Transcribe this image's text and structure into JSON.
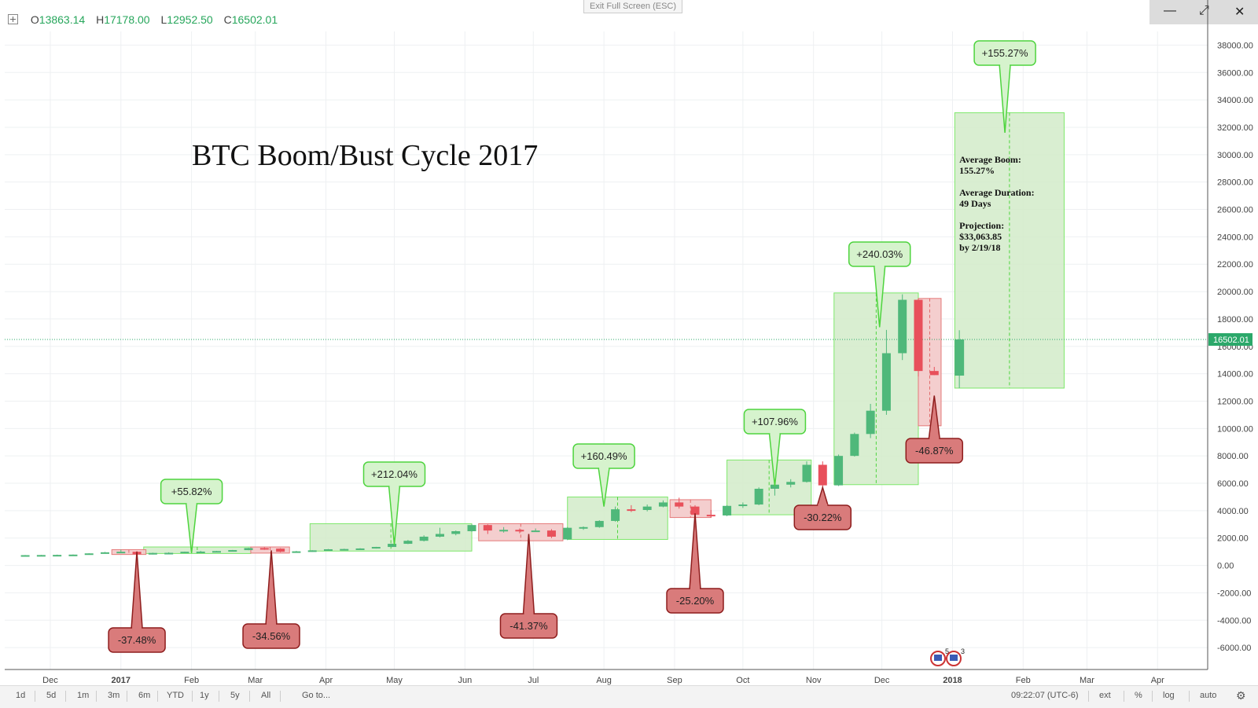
{
  "toolbar": {
    "ohlc": [
      {
        "key": "O",
        "value": "13863.14"
      },
      {
        "key": "H",
        "value": "17178.00"
      },
      {
        "key": "L",
        "value": "12952.50"
      },
      {
        "key": "C",
        "value": "16502.01"
      }
    ],
    "exit_fullscreen": "Exit Full Screen (ESC)",
    "window_buttons": [
      "—",
      "⤢",
      "✕"
    ]
  },
  "bottom_bar": {
    "ranges": [
      "1d",
      "5d",
      "1m",
      "3m",
      "6m",
      "YTD",
      "1y",
      "5y",
      "All"
    ],
    "goto": "Go to...",
    "clock": "09:22:07 (UTC-6)",
    "options": [
      "ext",
      "%",
      "log",
      "auto"
    ],
    "gear_icon": "gear-icon"
  },
  "chart_data": {
    "type": "candlestick",
    "title": "BTC Boom/Bust Cycle 2017",
    "last_price_label": "16502.01",
    "y_ticks": [
      -6000,
      -4000,
      -2000,
      0,
      2000,
      4000,
      6000,
      8000,
      10000,
      12000,
      14000,
      16000,
      18000,
      20000,
      22000,
      24000,
      26000,
      28000,
      30000,
      32000,
      34000,
      36000,
      38000
    ],
    "y_tick_labels": [
      "-6000.00",
      "-4000.00",
      "-2000.00",
      "0.00",
      "2000.00",
      "4000.00",
      "6000.00",
      "8000.00",
      "10000.00",
      "12000.00",
      "14000.00",
      "16000.00",
      "18000.00",
      "20000.00",
      "22000.00",
      "24000.00",
      "26000.00",
      "28000.00",
      "30000.00",
      "32000.00",
      "34000.00",
      "36000.00",
      "38000.00"
    ],
    "ylim": [
      -7600,
      39000
    ],
    "x_ticks": [
      {
        "label": "Dec",
        "date": "2016-12-01",
        "bold": false
      },
      {
        "label": "2017",
        "date": "2017-01-01",
        "bold": true
      },
      {
        "label": "Feb",
        "date": "2017-02-01",
        "bold": false
      },
      {
        "label": "Mar",
        "date": "2017-03-01",
        "bold": false
      },
      {
        "label": "Apr",
        "date": "2017-04-01",
        "bold": false
      },
      {
        "label": "May",
        "date": "2017-05-01",
        "bold": false
      },
      {
        "label": "Jun",
        "date": "2017-06-01",
        "bold": false
      },
      {
        "label": "Jul",
        "date": "2017-07-01",
        "bold": false
      },
      {
        "label": "Aug",
        "date": "2017-08-01",
        "bold": false
      },
      {
        "label": "Sep",
        "date": "2017-09-01",
        "bold": false
      },
      {
        "label": "Oct",
        "date": "2017-10-01",
        "bold": false
      },
      {
        "label": "Nov",
        "date": "2017-11-01",
        "bold": false
      },
      {
        "label": "Dec",
        "date": "2017-12-01",
        "bold": false
      },
      {
        "label": "2018",
        "date": "2018-01-01",
        "bold": true
      },
      {
        "label": "Feb",
        "date": "2018-02-01",
        "bold": false
      },
      {
        "label": "Mar",
        "date": "2018-03-01",
        "bold": false
      },
      {
        "label": "Apr",
        "date": "2018-04-01",
        "bold": false
      }
    ],
    "candles": [
      {
        "date": "2016-11-20",
        "o": 740,
        "h": 760,
        "l": 720,
        "c": 750
      },
      {
        "date": "2016-11-27",
        "o": 750,
        "h": 770,
        "l": 730,
        "c": 760
      },
      {
        "date": "2016-12-04",
        "o": 760,
        "h": 790,
        "l": 750,
        "c": 770
      },
      {
        "date": "2016-12-11",
        "o": 770,
        "h": 800,
        "l": 760,
        "c": 790
      },
      {
        "date": "2016-12-18",
        "o": 790,
        "h": 890,
        "l": 780,
        "c": 880
      },
      {
        "date": "2016-12-25",
        "o": 880,
        "h": 990,
        "l": 860,
        "c": 960
      },
      {
        "date": "2017-01-01",
        "o": 960,
        "h": 1150,
        "l": 900,
        "c": 1000
      },
      {
        "date": "2017-01-08",
        "o": 1000,
        "h": 1050,
        "l": 760,
        "c": 820
      },
      {
        "date": "2017-01-15",
        "o": 820,
        "h": 930,
        "l": 800,
        "c": 910
      },
      {
        "date": "2017-01-22",
        "o": 910,
        "h": 960,
        "l": 880,
        "c": 920
      },
      {
        "date": "2017-01-29",
        "o": 920,
        "h": 1010,
        "l": 910,
        "c": 1000
      },
      {
        "date": "2017-02-05",
        "o": 1000,
        "h": 1060,
        "l": 960,
        "c": 1010
      },
      {
        "date": "2017-02-12",
        "o": 1010,
        "h": 1060,
        "l": 990,
        "c": 1050
      },
      {
        "date": "2017-02-19",
        "o": 1050,
        "h": 1130,
        "l": 1040,
        "c": 1120
      },
      {
        "date": "2017-02-26",
        "o": 1120,
        "h": 1290,
        "l": 1110,
        "c": 1270
      },
      {
        "date": "2017-03-05",
        "o": 1270,
        "h": 1320,
        "l": 1140,
        "c": 1230
      },
      {
        "date": "2017-03-12",
        "o": 1230,
        "h": 1260,
        "l": 960,
        "c": 1000
      },
      {
        "date": "2017-03-19",
        "o": 1000,
        "h": 1060,
        "l": 930,
        "c": 1030
      },
      {
        "date": "2017-03-26",
        "o": 1030,
        "h": 1110,
        "l": 1000,
        "c": 1100
      },
      {
        "date": "2017-04-02",
        "o": 1100,
        "h": 1200,
        "l": 1090,
        "c": 1180
      },
      {
        "date": "2017-04-09",
        "o": 1180,
        "h": 1220,
        "l": 1140,
        "c": 1200
      },
      {
        "date": "2017-04-16",
        "o": 1200,
        "h": 1260,
        "l": 1180,
        "c": 1240
      },
      {
        "date": "2017-04-23",
        "o": 1240,
        "h": 1360,
        "l": 1230,
        "c": 1350
      },
      {
        "date": "2017-04-30",
        "o": 1350,
        "h": 1590,
        "l": 1340,
        "c": 1580
      },
      {
        "date": "2017-05-07",
        "o": 1580,
        "h": 1860,
        "l": 1560,
        "c": 1800
      },
      {
        "date": "2017-05-14",
        "o": 1800,
        "h": 2200,
        "l": 1750,
        "c": 2100
      },
      {
        "date": "2017-05-21",
        "o": 2100,
        "h": 2750,
        "l": 2050,
        "c": 2300
      },
      {
        "date": "2017-05-28",
        "o": 2300,
        "h": 2550,
        "l": 2200,
        "c": 2500
      },
      {
        "date": "2017-06-04",
        "o": 2500,
        "h": 3000,
        "l": 2450,
        "c": 2950
      },
      {
        "date": "2017-06-11",
        "o": 2950,
        "h": 3000,
        "l": 2300,
        "c": 2550
      },
      {
        "date": "2017-06-18",
        "o": 2550,
        "h": 2800,
        "l": 2400,
        "c": 2600
      },
      {
        "date": "2017-06-25",
        "o": 2600,
        "h": 2700,
        "l": 2350,
        "c": 2500
      },
      {
        "date": "2017-07-02",
        "o": 2500,
        "h": 2700,
        "l": 2450,
        "c": 2550
      },
      {
        "date": "2017-07-09",
        "o": 2550,
        "h": 2650,
        "l": 2000,
        "c": 2100
      },
      {
        "date": "2017-07-16",
        "o": 1900,
        "h": 2800,
        "l": 1850,
        "c": 2750
      },
      {
        "date": "2017-07-23",
        "o": 2750,
        "h": 2850,
        "l": 2600,
        "c": 2800
      },
      {
        "date": "2017-07-30",
        "o": 2800,
        "h": 3300,
        "l": 2750,
        "c": 3250
      },
      {
        "date": "2017-08-06",
        "o": 3250,
        "h": 4300,
        "l": 3200,
        "c": 4100
      },
      {
        "date": "2017-08-13",
        "o": 4100,
        "h": 4400,
        "l": 3900,
        "c": 4050
      },
      {
        "date": "2017-08-20",
        "o": 4050,
        "h": 4450,
        "l": 3950,
        "c": 4300
      },
      {
        "date": "2017-08-27",
        "o": 4300,
        "h": 4750,
        "l": 4250,
        "c": 4600
      },
      {
        "date": "2017-09-03",
        "o": 4600,
        "h": 4950,
        "l": 4150,
        "c": 4300
      },
      {
        "date": "2017-09-10",
        "o": 4300,
        "h": 4400,
        "l": 3000,
        "c": 3700
      },
      {
        "date": "2017-09-17",
        "o": 3700,
        "h": 4050,
        "l": 3500,
        "c": 3650
      },
      {
        "date": "2017-09-24",
        "o": 3650,
        "h": 4400,
        "l": 3600,
        "c": 4350
      },
      {
        "date": "2017-10-01",
        "o": 4350,
        "h": 4600,
        "l": 4200,
        "c": 4450
      },
      {
        "date": "2017-10-08",
        "o": 4450,
        "h": 5700,
        "l": 4400,
        "c": 5600
      },
      {
        "date": "2017-10-15",
        "o": 5600,
        "h": 6000,
        "l": 5100,
        "c": 5900
      },
      {
        "date": "2017-10-22",
        "o": 5900,
        "h": 6300,
        "l": 5700,
        "c": 6100
      },
      {
        "date": "2017-10-29",
        "o": 6100,
        "h": 7600,
        "l": 6050,
        "c": 7350
      },
      {
        "date": "2017-11-05",
        "o": 7350,
        "h": 7600,
        "l": 5500,
        "c": 5850
      },
      {
        "date": "2017-11-12",
        "o": 5850,
        "h": 8100,
        "l": 5800,
        "c": 8000
      },
      {
        "date": "2017-11-19",
        "o": 8000,
        "h": 9700,
        "l": 7950,
        "c": 9600
      },
      {
        "date": "2017-11-26",
        "o": 9600,
        "h": 11800,
        "l": 9300,
        "c": 11300
      },
      {
        "date": "2017-12-03",
        "o": 11300,
        "h": 17200,
        "l": 11000,
        "c": 15500
      },
      {
        "date": "2017-12-10",
        "o": 15500,
        "h": 19800,
        "l": 15000,
        "c": 19400
      },
      {
        "date": "2017-12-17",
        "o": 19400,
        "h": 19500,
        "l": 13800,
        "c": 14200
      },
      {
        "date": "2017-12-24",
        "o": 14200,
        "h": 14500,
        "l": 13900,
        "c": 13900
      },
      {
        "date": "2018-01-04",
        "o": 13863.14,
        "h": 17178,
        "l": 12952.5,
        "c": 16502.01
      }
    ],
    "boom_zones": [
      {
        "start": "2017-01-11",
        "end": "2017-02-27",
        "low": 870,
        "high": 1350
      },
      {
        "start": "2017-03-25",
        "end": "2017-06-04",
        "low": 1050,
        "high": 3050
      },
      {
        "start": "2017-07-16",
        "end": "2017-08-29",
        "low": 1900,
        "high": 5000
      },
      {
        "start": "2017-09-24",
        "end": "2017-10-31",
        "low": 3700,
        "high": 7700
      },
      {
        "start": "2017-11-10",
        "end": "2017-12-17",
        "low": 5900,
        "high": 19900
      },
      {
        "start": "2018-01-02",
        "end": "2018-02-19",
        "low": 12950,
        "high": 33064
      }
    ],
    "bust_zones": [
      {
        "start": "2016-12-28",
        "end": "2017-01-12",
        "low": 800,
        "high": 1150
      },
      {
        "start": "2017-02-27",
        "end": "2017-03-16",
        "low": 900,
        "high": 1350
      },
      {
        "start": "2017-06-07",
        "end": "2017-07-14",
        "low": 1800,
        "high": 3050
      },
      {
        "start": "2017-08-30",
        "end": "2017-09-17",
        "low": 3500,
        "high": 4800
      },
      {
        "start": "2017-12-17",
        "end": "2017-12-27",
        "low": 10200,
        "high": 19500
      }
    ],
    "boom_callouts": [
      {
        "label": "+55.82%",
        "date": "2017-02-01",
        "tip": 900
      },
      {
        "label": "+212.04%",
        "date": "2017-05-01",
        "tip": 1500
      },
      {
        "label": "+160.49%",
        "date": "2017-08-01",
        "tip": 4300
      },
      {
        "label": "+107.96%",
        "date": "2017-10-15",
        "tip": 5800
      },
      {
        "label": "+240.03%",
        "date": "2017-11-30",
        "tip": 17400
      },
      {
        "label": "+155.27%",
        "date": "2018-01-24",
        "tip": 31600
      }
    ],
    "bust_callouts": [
      {
        "label": "-37.48%",
        "date": "2017-01-08",
        "tip": 1000
      },
      {
        "label": "-34.56%",
        "date": "2017-03-08",
        "tip": 1100
      },
      {
        "label": "-41.37%",
        "date": "2017-06-29",
        "tip": 2300
      },
      {
        "label": "-25.20%",
        "date": "2017-09-10",
        "tip": 3800
      },
      {
        "label": "-30.22%",
        "date": "2017-11-05",
        "tip": 5700
      },
      {
        "label": "-46.87%",
        "date": "2017-12-24",
        "tip": 12400
      }
    ],
    "annotation_lines": [
      "Average Boom:",
      "155.27%",
      "",
      "Average Duration:",
      "49 Days",
      "",
      "Projection:",
      "$33,063.85",
      "by 2/19/18"
    ],
    "colors": {
      "up": "#4fb87a",
      "down": "#e8505b",
      "boom_fill": "#d2ebc9",
      "boom_stroke": "#7ee86b",
      "bust_fill": "#f3c9c9",
      "bust_stroke": "#e57a7a",
      "bust_callout": "#d97b7b",
      "bust_callout_stroke": "#8e1d1d",
      "boom_callout": "#d6f3cd",
      "boom_callout_stroke": "#4ed43e",
      "last_price": "#2ba86a"
    }
  }
}
